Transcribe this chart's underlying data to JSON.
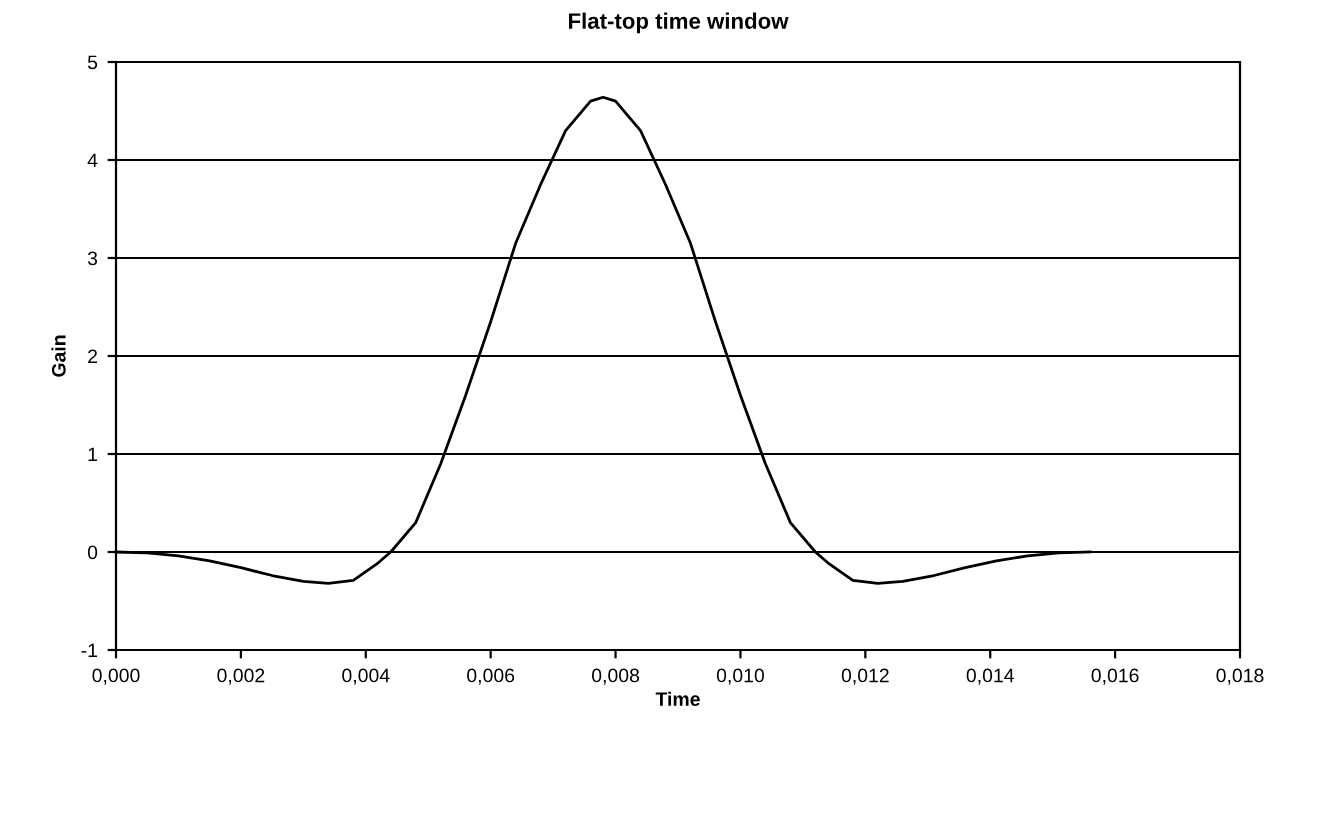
{
  "chart_data": {
    "type": "line",
    "title": "Flat-top time window",
    "xlabel": "Time",
    "ylabel": "Gain",
    "series": [
      {
        "color": "#000000",
        "x": [
          0,
          0.0005,
          0.001,
          0.0015,
          0.002,
          0.0025,
          0.003,
          0.0034,
          0.0038,
          0.0042,
          0.0044,
          0.0048,
          0.0052,
          0.0056,
          0.006,
          0.0064,
          0.0068,
          0.0072,
          0.0076,
          0.0078,
          0.008,
          0.0084,
          0.0088,
          0.0092,
          0.0096,
          0.01,
          0.0104,
          0.0108,
          0.0112,
          0.0114,
          0.0118,
          0.0122,
          0.0126,
          0.0131,
          0.0136,
          0.0141,
          0.0146,
          0.0151,
          0.0156
        ],
        "values": [
          0,
          -0.01,
          -0.04,
          -0.09,
          -0.16,
          -0.24,
          -0.3,
          -0.32,
          -0.29,
          -0.11,
          0,
          0.3,
          0.9,
          1.6,
          2.35,
          3.15,
          3.75,
          4.3,
          4.6,
          4.64,
          4.6,
          4.3,
          3.75,
          3.15,
          2.35,
          1.6,
          0.9,
          0.3,
          0,
          -0.11,
          -0.29,
          -0.32,
          -0.3,
          -0.24,
          -0.16,
          -0.09,
          -0.04,
          -0.01,
          0
        ]
      }
    ],
    "xlim": [
      0,
      0.018
    ],
    "ylim": [
      -1,
      5
    ],
    "xticks": [
      {
        "value": 0,
        "label": "0,000"
      },
      {
        "value": 0.002,
        "label": "0,002"
      },
      {
        "value": 0.004,
        "label": "0,004"
      },
      {
        "value": 0.006,
        "label": "0,006"
      },
      {
        "value": 0.008,
        "label": "0,008"
      },
      {
        "value": 0.01,
        "label": "0,010"
      },
      {
        "value": 0.012,
        "label": "0,012"
      },
      {
        "value": 0.014,
        "label": "0,014"
      },
      {
        "value": 0.016,
        "label": "0,016"
      },
      {
        "value": 0.018,
        "label": "0,018"
      }
    ],
    "yticks": [
      -1,
      0,
      1,
      2,
      3,
      4,
      5
    ],
    "grid": "y",
    "marker": "none",
    "line_style": "solid"
  }
}
